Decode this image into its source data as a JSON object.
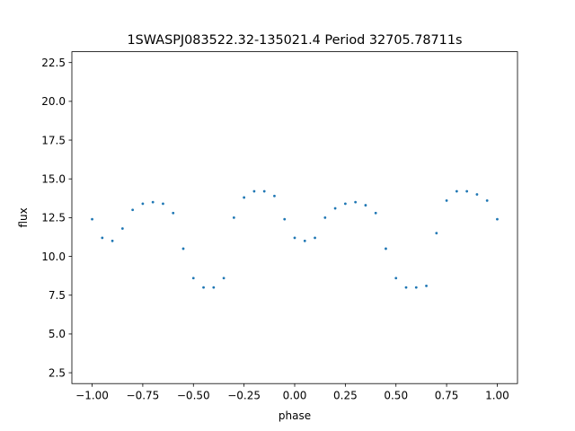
{
  "chart_data": {
    "type": "scatter",
    "title": "1SWASPJ083522.32-135021.4 Period 32705.78711s",
    "xlabel": "phase",
    "ylabel": "flux",
    "xlim": [
      -1.1,
      1.1
    ],
    "ylim": [
      1.8,
      23.2
    ],
    "xticks": [
      -1.0,
      -0.75,
      -0.5,
      -0.25,
      0.0,
      0.25,
      0.5,
      0.75,
      1.0
    ],
    "xtick_labels": [
      "−1.00",
      "−0.75",
      "−0.50",
      "−0.25",
      "0.00",
      "0.25",
      "0.50",
      "0.75",
      "1.00"
    ],
    "yticks": [
      2.5,
      5.0,
      7.5,
      10.0,
      12.5,
      15.0,
      17.5,
      20.0,
      22.5
    ],
    "ytick_labels": [
      "2.5",
      "5.0",
      "7.5",
      "10.0",
      "12.5",
      "15.0",
      "17.5",
      "20.0",
      "22.5"
    ],
    "grid": false,
    "point_color": "#1f77b4",
    "series": [
      {
        "values": [
          [
            -1.0,
            12.4
          ],
          [
            -0.95,
            11.2
          ],
          [
            -0.9,
            11.0
          ],
          [
            -0.85,
            11.8
          ],
          [
            -0.8,
            13.0
          ],
          [
            -0.75,
            13.4
          ],
          [
            -0.7,
            13.5
          ],
          [
            -0.65,
            13.4
          ],
          [
            -0.6,
            12.8
          ],
          [
            -0.55,
            10.5
          ],
          [
            -0.5,
            8.6
          ],
          [
            -0.45,
            8.0
          ],
          [
            -0.4,
            8.0
          ],
          [
            -0.35,
            8.6
          ],
          [
            -0.3,
            12.5
          ],
          [
            -0.25,
            13.8
          ],
          [
            -0.2,
            14.2
          ],
          [
            -0.15,
            14.2
          ],
          [
            -0.1,
            13.9
          ],
          [
            -0.05,
            12.4
          ],
          [
            0.0,
            11.2
          ],
          [
            0.05,
            11.0
          ],
          [
            0.1,
            11.2
          ],
          [
            0.15,
            12.5
          ],
          [
            0.2,
            13.1
          ],
          [
            0.25,
            13.4
          ],
          [
            0.3,
            13.5
          ],
          [
            0.35,
            13.3
          ],
          [
            0.4,
            12.8
          ],
          [
            0.45,
            10.5
          ],
          [
            0.5,
            8.6
          ],
          [
            0.55,
            8.0
          ],
          [
            0.6,
            8.0
          ],
          [
            0.65,
            8.1
          ],
          [
            0.7,
            11.5
          ],
          [
            0.75,
            13.6
          ],
          [
            0.8,
            14.2
          ],
          [
            0.85,
            14.2
          ],
          [
            0.9,
            14.0
          ],
          [
            0.95,
            13.6
          ],
          [
            1.0,
            12.4
          ]
        ]
      }
    ]
  }
}
